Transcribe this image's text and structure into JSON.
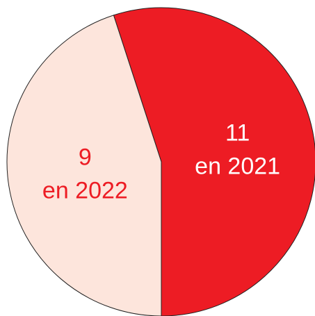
{
  "chart_data": {
    "type": "pie",
    "categories": [
      "en 2021",
      "en 2022"
    ],
    "values": [
      11,
      9
    ],
    "colors": [
      "#ed1c24",
      "#fde5dc"
    ],
    "label_colors": [
      "#ffffff",
      "#ed1c24"
    ]
  }
}
